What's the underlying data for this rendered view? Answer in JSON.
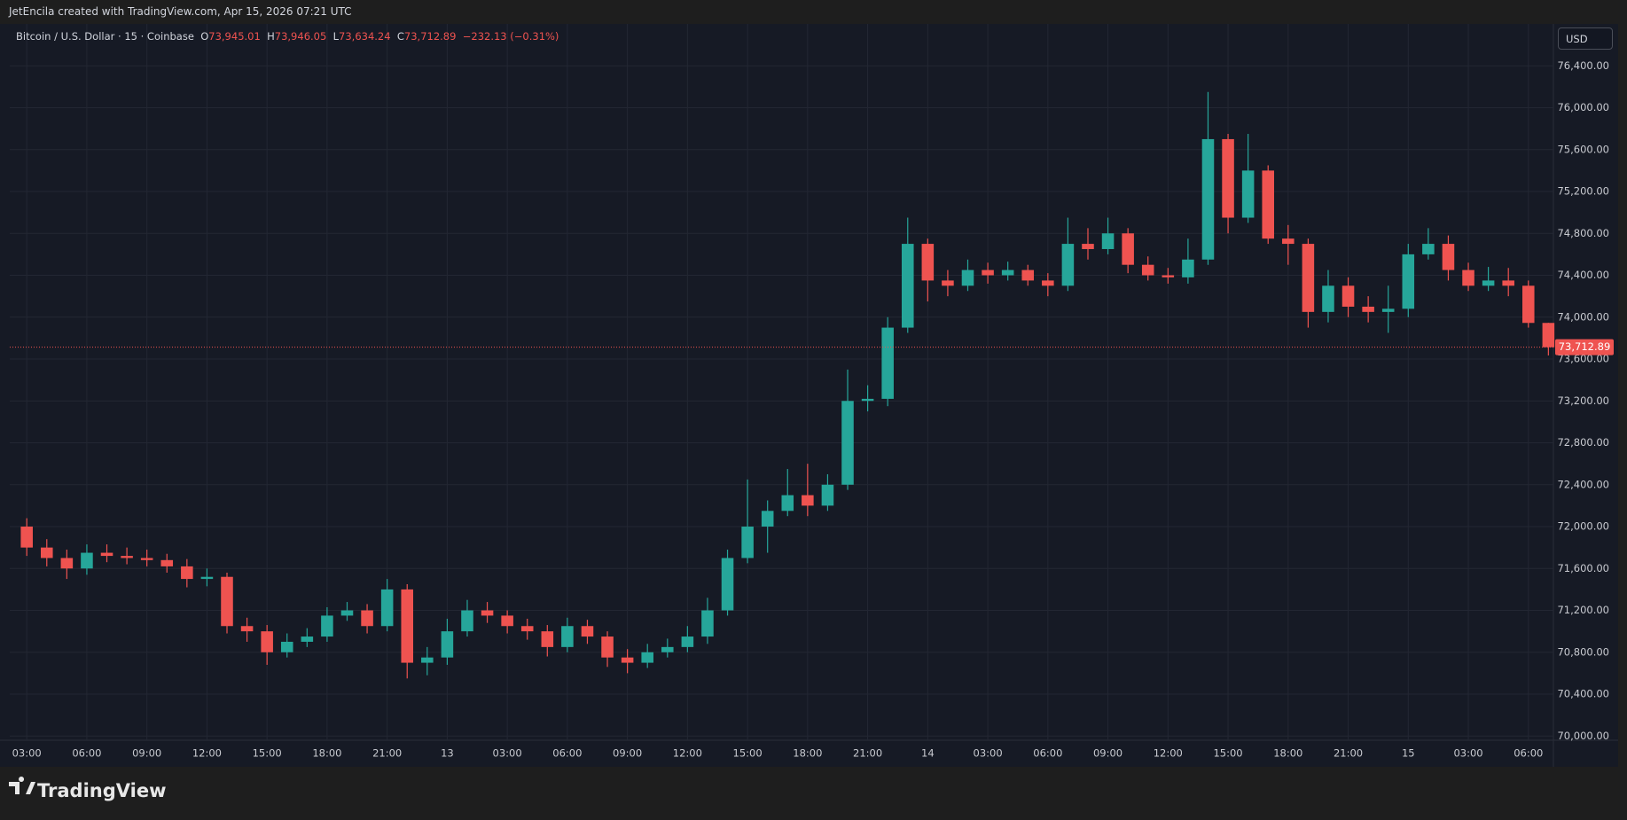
{
  "header": {
    "text": "JetEncila created with TradingView.com, Apr 15, 2026 07:21 UTC"
  },
  "legend": {
    "symbol": "Bitcoin / U.S. Dollar · 15 · Coinbase",
    "o_label": "O",
    "o_value": "73,945.01",
    "h_label": "H",
    "h_value": "73,946.05",
    "l_label": "L",
    "l_value": "73,634.24",
    "c_label": "C",
    "c_value": "73,712.89",
    "change": "−232.13 (−0.31%)"
  },
  "currency_button": "USD",
  "footer": {
    "brand": "TradingView"
  },
  "chart_data": {
    "type": "candlestick",
    "up_color": "#26a69a",
    "down_color": "#ef5350",
    "grid": true,
    "x": [
      3,
      4,
      5,
      6,
      7,
      8,
      9,
      10,
      11,
      12,
      13,
      14,
      15,
      16,
      17,
      18,
      19,
      20,
      21,
      22,
      23,
      24,
      25,
      26,
      27,
      28,
      29,
      30,
      31,
      32,
      33,
      34,
      35,
      36,
      37,
      38,
      39,
      40,
      41,
      42,
      43,
      44,
      45,
      46,
      47,
      48,
      49,
      50,
      51,
      52,
      53,
      54,
      55,
      56,
      57,
      58,
      59,
      60,
      61,
      62,
      63,
      64,
      65,
      66,
      67,
      68,
      69,
      70,
      71,
      72,
      73,
      74,
      75,
      76,
      77,
      78,
      79
    ],
    "open": [
      72000,
      71800,
      71700,
      71600,
      71750,
      71720,
      71700,
      71680,
      71620,
      71500,
      71520,
      71050,
      71000,
      70800,
      70900,
      70950,
      71150,
      71200,
      71050,
      71400,
      70700,
      70750,
      71000,
      71200,
      71150,
      71050,
      71000,
      70850,
      71050,
      70950,
      70750,
      70700,
      70800,
      70850,
      70950,
      71200,
      71700,
      72000,
      72150,
      72300,
      72200,
      72400,
      73200,
      73220,
      73900,
      74700,
      74350,
      74300,
      74450,
      74400,
      74450,
      74350,
      74300,
      74700,
      74650,
      74800,
      74500,
      74400,
      74380,
      74550,
      75700,
      74950,
      75400,
      74750,
      74700,
      74050,
      74300,
      74100,
      74050,
      74080,
      74600,
      74700,
      74450,
      74300,
      74350,
      74300,
      73945.01
    ],
    "high": [
      72080,
      71880,
      71780,
      71830,
      71830,
      71800,
      71780,
      71740,
      71690,
      71600,
      71560,
      71130,
      71060,
      70980,
      71030,
      71230,
      71280,
      71260,
      71500,
      71450,
      70850,
      71120,
      71300,
      71280,
      71200,
      71120,
      71060,
      71130,
      71110,
      71000,
      70830,
      70880,
      70930,
      71050,
      71320,
      71780,
      72450,
      72250,
      72550,
      72600,
      72500,
      73500,
      73350,
      74000,
      74950,
      74750,
      74450,
      74550,
      74520,
      74530,
      74500,
      74420,
      74950,
      74850,
      74950,
      74850,
      74580,
      74470,
      74750,
      76150,
      75750,
      75750,
      75450,
      74880,
      74750,
      74450,
      74380,
      74200,
      74300,
      74700,
      74850,
      74780,
      74520,
      74480,
      74470,
      74350,
      73946.05
    ],
    "low": [
      71720,
      71620,
      71500,
      71540,
      71660,
      71640,
      71620,
      71560,
      71420,
      71430,
      70980,
      70900,
      70680,
      70750,
      70850,
      70900,
      71100,
      70980,
      71000,
      70550,
      70580,
      70680,
      70950,
      71080,
      70980,
      70920,
      70760,
      70800,
      70880,
      70660,
      70600,
      70650,
      70750,
      70800,
      70880,
      71150,
      71650,
      71750,
      72100,
      72100,
      72150,
      72350,
      73100,
      73150,
      73850,
      74150,
      74200,
      74250,
      74320,
      74350,
      74300,
      74200,
      74250,
      74550,
      74600,
      74420,
      74350,
      74320,
      74320,
      74500,
      74800,
      74900,
      74700,
      74500,
      73900,
      73950,
      74000,
      73950,
      73850,
      74000,
      74550,
      74350,
      74250,
      74250,
      74200,
      73900,
      73634.24
    ],
    "close": [
      71800,
      71700,
      71600,
      71750,
      71720,
      71700,
      71680,
      71620,
      71500,
      71520,
      71050,
      71000,
      70800,
      70900,
      70950,
      71150,
      71200,
      71050,
      71400,
      70700,
      70750,
      71000,
      71200,
      71150,
      71050,
      71000,
      70850,
      71050,
      70950,
      70750,
      70700,
      70800,
      70850,
      70950,
      71200,
      71700,
      72000,
      72150,
      72300,
      72200,
      72400,
      73200,
      73220,
      73900,
      74700,
      74350,
      74300,
      74450,
      74400,
      74450,
      74350,
      74300,
      74700,
      74650,
      74800,
      74500,
      74400,
      74380,
      74550,
      75700,
      74950,
      75400,
      74750,
      74700,
      74050,
      74300,
      74100,
      74050,
      74080,
      74600,
      74700,
      74450,
      74300,
      74350,
      74300,
      73945.01,
      73712.89
    ],
    "last_price": {
      "value": 73712.89,
      "label": "73,712.89"
    },
    "xlim": [
      2.15,
      79.25
    ],
    "xticks": [
      {
        "value": 3,
        "label": "03:00"
      },
      {
        "value": 6,
        "label": "06:00"
      },
      {
        "value": 9,
        "label": "09:00"
      },
      {
        "value": 12,
        "label": "12:00"
      },
      {
        "value": 15,
        "label": "15:00"
      },
      {
        "value": 18,
        "label": "18:00"
      },
      {
        "value": 21,
        "label": "21:00"
      },
      {
        "value": 24,
        "label": "13"
      },
      {
        "value": 27,
        "label": "03:00"
      },
      {
        "value": 30,
        "label": "06:00"
      },
      {
        "value": 33,
        "label": "09:00"
      },
      {
        "value": 36,
        "label": "12:00"
      },
      {
        "value": 39,
        "label": "15:00"
      },
      {
        "value": 42,
        "label": "18:00"
      },
      {
        "value": 45,
        "label": "21:00"
      },
      {
        "value": 48,
        "label": "14"
      },
      {
        "value": 51,
        "label": "03:00"
      },
      {
        "value": 54,
        "label": "06:00"
      },
      {
        "value": 57,
        "label": "09:00"
      },
      {
        "value": 60,
        "label": "12:00"
      },
      {
        "value": 63,
        "label": "15:00"
      },
      {
        "value": 66,
        "label": "18:00"
      },
      {
        "value": 69,
        "label": "21:00"
      },
      {
        "value": 72,
        "label": "15"
      },
      {
        "value": 75,
        "label": "03:00"
      },
      {
        "value": 78,
        "label": "06:00"
      }
    ],
    "ylim": [
      69960,
      76800
    ],
    "yticks": [
      {
        "value": 70000,
        "label": "70,000.00"
      },
      {
        "value": 70400,
        "label": "70,400.00"
      },
      {
        "value": 70800,
        "label": "70,800.00"
      },
      {
        "value": 71200,
        "label": "71,200.00"
      },
      {
        "value": 71600,
        "label": "71,600.00"
      },
      {
        "value": 72000,
        "label": "72,000.00"
      },
      {
        "value": 72400,
        "label": "72,400.00"
      },
      {
        "value": 72800,
        "label": "72,800.00"
      },
      {
        "value": 73200,
        "label": "73,200.00"
      },
      {
        "value": 73600,
        "label": "73,600.00"
      },
      {
        "value": 74000,
        "label": "74,000.00"
      },
      {
        "value": 74400,
        "label": "74,400.00"
      },
      {
        "value": 74800,
        "label": "74,800.00"
      },
      {
        "value": 75200,
        "label": "75,200.00"
      },
      {
        "value": 75600,
        "label": "75,600.00"
      },
      {
        "value": 76000,
        "label": "76,000.00"
      },
      {
        "value": 76400,
        "label": "76,400.00"
      }
    ]
  }
}
